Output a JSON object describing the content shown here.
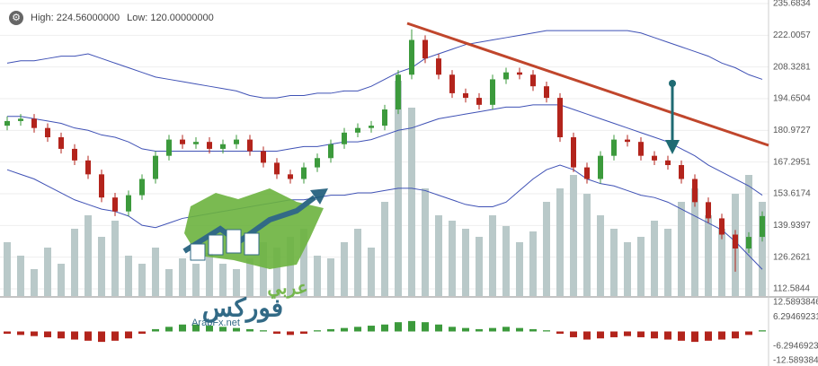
{
  "header": {
    "high": "High: 224.56000000",
    "low": "Low: 120.00000000"
  },
  "logo": {
    "latin": "ArabFx.net",
    "arabic_top": "عربي",
    "arabic_main": "فوركس"
  },
  "chart_data": {
    "type": "candlestick",
    "ylim": [
      112.5844,
      235.6834
    ],
    "yticks": [
      235.6834,
      222.0057,
      208.3281,
      194.6504,
      180.9727,
      167.2951,
      153.6174,
      139.9397,
      126.2621,
      112.5844
    ],
    "grid": true,
    "up_color": "#3c9a3c",
    "down_color": "#b3241c",
    "open": [
      183,
      185,
      186,
      182,
      178,
      173,
      168,
      162,
      152,
      146,
      153,
      160,
      170,
      177,
      175,
      176,
      173,
      175,
      177,
      172,
      167,
      162,
      160,
      165,
      169,
      175,
      180,
      182,
      183,
      190,
      205,
      220,
      212,
      205,
      197,
      195,
      192,
      203,
      206,
      205,
      200,
      195,
      178,
      165,
      160,
      170,
      177,
      176,
      170,
      168,
      166,
      160,
      150,
      143,
      136,
      130,
      135
    ],
    "high": [
      187,
      188,
      188,
      184,
      180,
      175,
      170,
      164,
      154,
      155,
      162,
      172,
      179,
      179,
      178,
      178,
      177,
      179,
      179,
      174,
      169,
      164,
      167,
      171,
      177,
      182,
      184,
      185,
      192,
      207,
      224.56,
      222,
      214,
      207,
      199,
      197,
      205,
      208,
      208,
      207,
      202,
      197,
      180,
      167,
      172,
      179,
      179,
      178,
      172,
      170,
      168,
      162,
      152,
      145,
      138,
      137,
      146
    ],
    "low": [
      181,
      183,
      180,
      176,
      171,
      166,
      160,
      150,
      144,
      144,
      151,
      158,
      168,
      173,
      173,
      171,
      171,
      173,
      170,
      165,
      160,
      158,
      158,
      163,
      167,
      173,
      178,
      180,
      181,
      188,
      203,
      210,
      203,
      195,
      193,
      190,
      190,
      201,
      203,
      198,
      193,
      176,
      163,
      158,
      158,
      168,
      174,
      168,
      166,
      164,
      158,
      148,
      141,
      134,
      120,
      128,
      133
    ],
    "close": [
      185,
      186,
      182,
      178,
      173,
      168,
      162,
      152,
      146,
      153,
      160,
      170,
      177,
      175,
      176,
      173,
      175,
      177,
      172,
      167,
      162,
      160,
      165,
      169,
      175,
      180,
      182,
      183,
      190,
      205,
      220,
      212,
      205,
      197,
      195,
      192,
      203,
      206,
      205,
      200,
      195,
      178,
      165,
      160,
      170,
      177,
      176,
      170,
      168,
      166,
      160,
      150,
      143,
      136,
      130,
      135,
      144
    ],
    "volume": {
      "color": "#b9c9c9",
      "values": [
        20,
        15,
        10,
        18,
        12,
        25,
        30,
        22,
        28,
        15,
        12,
        18,
        10,
        14,
        12,
        16,
        12,
        10,
        14,
        20,
        18,
        22,
        25,
        15,
        14,
        20,
        25,
        18,
        35,
        80,
        70,
        40,
        30,
        28,
        25,
        22,
        30,
        26,
        20,
        24,
        35,
        40,
        45,
        38,
        30,
        25,
        20,
        22,
        28,
        25,
        35,
        40,
        30,
        25,
        38,
        45,
        35
      ]
    },
    "bands": [
      {
        "name": "upper",
        "color": "#3f51b5",
        "values": [
          210,
          211,
          211,
          212,
          213,
          213,
          214,
          212,
          210,
          208,
          206,
          204,
          203,
          202,
          201,
          200,
          199,
          198,
          196,
          195,
          195,
          196,
          196,
          197,
          197,
          198,
          198,
          200,
          203,
          206,
          208,
          212,
          214,
          216,
          218,
          219,
          220,
          221,
          222,
          223,
          224,
          224,
          224,
          224,
          224,
          224,
          224,
          223,
          221,
          219,
          217,
          215,
          213,
          210,
          208,
          205,
          203
        ]
      },
      {
        "name": "middle",
        "color": "#3f51b5",
        "values": [
          187,
          187,
          186,
          185,
          184,
          182,
          181,
          179,
          178,
          176,
          173,
          172,
          172,
          172,
          172,
          172,
          172,
          172,
          172,
          172,
          172,
          173,
          174,
          174,
          175,
          176,
          176,
          177,
          179,
          181,
          182,
          184,
          186,
          187,
          188,
          189,
          190,
          191,
          191,
          192,
          192,
          192,
          190,
          188,
          186,
          184,
          182,
          180,
          178,
          176,
          173,
          170,
          166,
          163,
          160,
          157,
          153
        ]
      },
      {
        "name": "lower",
        "color": "#3f51b5",
        "values": [
          164,
          162,
          160,
          157,
          154,
          151,
          149,
          147,
          146,
          144,
          140,
          139,
          141,
          143,
          144,
          145,
          146,
          147,
          148,
          149,
          150,
          151,
          151,
          152,
          153,
          153,
          154,
          154,
          155,
          156,
          156,
          155,
          153,
          151,
          149,
          148,
          148,
          150,
          155,
          160,
          164,
          166,
          164,
          160,
          158,
          157,
          155,
          153,
          152,
          150,
          147,
          144,
          141,
          138,
          133,
          127,
          121
        ]
      }
    ],
    "macd": {
      "ylim": [
        -12.5893846,
        12.5893846
      ],
      "yticks": [
        {
          "value": 12.5893846,
          "label": "12.5893846"
        },
        {
          "value": 6.29469231,
          "label": "6.29469231"
        },
        {
          "value": -6.2946923,
          "label": "-6.2946923"
        },
        {
          "value": -12.589384,
          "label": "-12.589384"
        }
      ],
      "up_color": "#3c9a3c",
      "down_color": "#b3241c",
      "histogram": [
        -1,
        -1.5,
        -2,
        -2.5,
        -3,
        -3.5,
        -4,
        -4.5,
        -4,
        -3,
        -1,
        1,
        2,
        3,
        3,
        2.5,
        2,
        1.5,
        1,
        0.5,
        -1,
        -1.5,
        -1,
        0.5,
        1,
        1.5,
        2,
        2.5,
        3,
        4,
        4.5,
        4,
        3,
        2,
        1.5,
        1,
        1.5,
        2,
        1.5,
        1,
        0.5,
        -1,
        -2.5,
        -3.5,
        -3,
        -2.5,
        -2,
        -2.5,
        -3,
        -3.5,
        -4,
        -4.5,
        -4,
        -3.5,
        -3,
        -1.5,
        0.5
      ]
    }
  }
}
